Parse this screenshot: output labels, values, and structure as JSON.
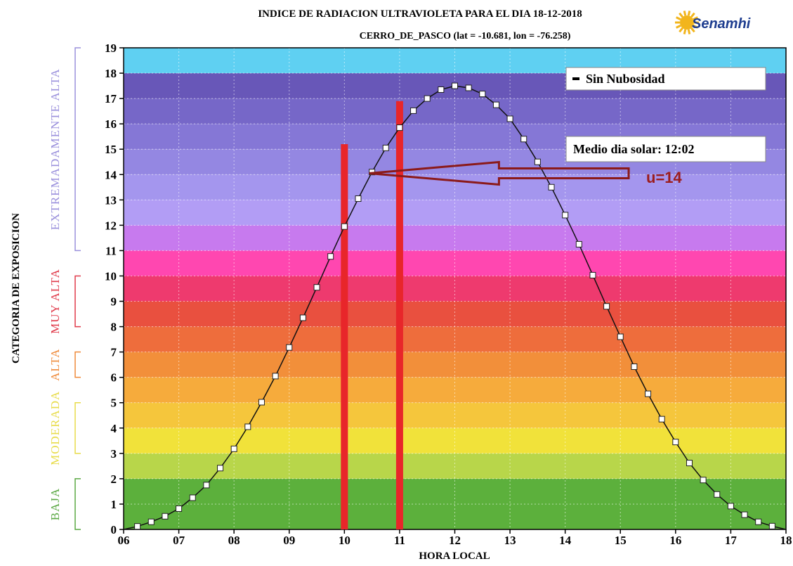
{
  "chart_data": {
    "type": "line",
    "title": "INDICE DE RADIACION ULTRAVIOLETA PARA EL DIA 18-12-2018",
    "subtitle": "CERRO_DE_PASCO (lat = -10.681, lon = -76.258)",
    "xlabel": "HORA LOCAL",
    "ylabel": "CATEGORIA DE EXPOSICION",
    "xlim": [
      6,
      18
    ],
    "ylim": [
      0,
      19
    ],
    "grid": true,
    "x_tick_labels": [
      "06",
      "07",
      "08",
      "09",
      "10",
      "11",
      "12",
      "13",
      "14",
      "15",
      "16",
      "17",
      "18"
    ],
    "y_tick_labels": [
      "0",
      "1",
      "2",
      "3",
      "4",
      "5",
      "6",
      "7",
      "8",
      "9",
      "10",
      "11",
      "12",
      "13",
      "14",
      "15",
      "16",
      "17",
      "18",
      "19"
    ],
    "series": [
      {
        "name": "Sin Nubosidad",
        "x": [
          6.25,
          6.5,
          6.75,
          7.0,
          7.25,
          7.5,
          7.75,
          8.0,
          8.25,
          8.5,
          8.75,
          9.0,
          9.25,
          9.5,
          9.75,
          10.0,
          10.25,
          10.5,
          10.75,
          11.0,
          11.25,
          11.5,
          11.75,
          12.0,
          12.25,
          12.5,
          12.75,
          13.0,
          13.25,
          13.5,
          13.75,
          14.0,
          14.25,
          14.5,
          14.75,
          15.0,
          15.25,
          15.5,
          15.75,
          16.0,
          16.25,
          16.5,
          16.75,
          17.0,
          17.25,
          17.5,
          17.75
        ],
        "y": [
          0.12,
          0.3,
          0.52,
          0.82,
          1.25,
          1.75,
          2.42,
          3.18,
          4.05,
          5.02,
          6.05,
          7.18,
          8.35,
          9.55,
          10.77,
          11.95,
          13.05,
          14.1,
          15.05,
          15.85,
          16.52,
          17.0,
          17.35,
          17.5,
          17.42,
          17.18,
          16.75,
          16.2,
          15.4,
          14.5,
          13.5,
          12.4,
          11.25,
          10.03,
          8.8,
          7.6,
          6.42,
          5.35,
          4.35,
          3.45,
          2.62,
          1.95,
          1.38,
          0.92,
          0.58,
          0.3,
          0.13
        ]
      }
    ],
    "bands": [
      {
        "from": 0,
        "to": 2,
        "color": "#5cb03c"
      },
      {
        "from": 2,
        "to": 3,
        "color": "#b8d64a"
      },
      {
        "from": 3,
        "to": 4,
        "color": "#f1e23a"
      },
      {
        "from": 4,
        "to": 5,
        "color": "#f5c63c"
      },
      {
        "from": 5,
        "to": 6,
        "color": "#f6ab3c"
      },
      {
        "from": 6,
        "to": 7,
        "color": "#f28f3a"
      },
      {
        "from": 7,
        "to": 8,
        "color": "#ee6d3c"
      },
      {
        "from": 8,
        "to": 9,
        "color": "#e9503f"
      },
      {
        "from": 9,
        "to": 10,
        "color": "#ee3a6e"
      },
      {
        "from": 10,
        "to": 11,
        "color": "#ff47b0"
      },
      {
        "from": 11,
        "to": 12,
        "color": "#c77aee"
      },
      {
        "from": 12,
        "to": 13,
        "color": "#b29df5"
      },
      {
        "from": 13,
        "to": 14,
        "color": "#a496ee"
      },
      {
        "from": 14,
        "to": 15,
        "color": "#9487e2"
      },
      {
        "from": 15,
        "to": 16,
        "color": "#8577d6"
      },
      {
        "from": 16,
        "to": 17,
        "color": "#7667c8"
      },
      {
        "from": 17,
        "to": 18,
        "color": "#6857b8"
      },
      {
        "from": 18,
        "to": 19,
        "color": "#5fd0f2"
      }
    ],
    "categories": [
      {
        "label": "BAJA",
        "from": 0,
        "to": 2,
        "color": "#5aa843"
      },
      {
        "label": "MODERADA",
        "from": 3,
        "to": 5,
        "color": "#e8dc4a"
      },
      {
        "label": "ALTA",
        "from": 6,
        "to": 7,
        "color": "#ef8a3a"
      },
      {
        "label": "MUY ALTA",
        "from": 8,
        "to": 10,
        "color": "#e03a4a"
      },
      {
        "label": "EXTREMADAMENTE ALTA",
        "from": 11,
        "to": 19,
        "color": "#9a90dc"
      }
    ],
    "vertical_markers": [
      {
        "x": 10.0,
        "y_top": 15.2,
        "color": "#e8262a"
      },
      {
        "x": 11.0,
        "y_top": 16.9,
        "color": "#e8262a"
      }
    ],
    "arrow": {
      "from_x": 15.15,
      "to_x": 10.45,
      "y": 14.05,
      "color": "#8b1a1a"
    },
    "legend": {
      "label": "Sin Nubosidad",
      "placement": "top-right"
    },
    "solar_noon_label": "Medio dia solar: 12:02",
    "annotation_text": "u=14",
    "annotation_color": "#9b1c1c"
  },
  "logo": {
    "text": "Senamhi",
    "color": "#1e3d8f",
    "sun_color": "#f2b51c"
  }
}
